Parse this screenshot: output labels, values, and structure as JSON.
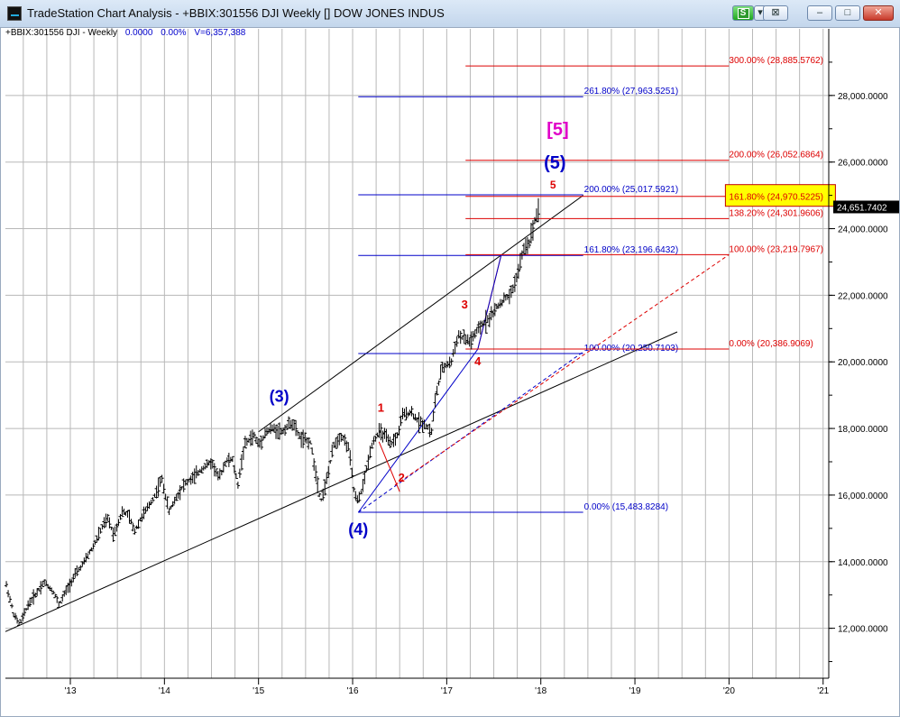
{
  "window": {
    "title": "TradeStation Chart Analysis - +BBIX:301556 DJI Weekly [] DOW JONES INDUS",
    "s_label": "S",
    "link_label": "⊠",
    "min_label": "–",
    "max_label": "□",
    "close_label": "✕"
  },
  "header": {
    "symbol": "+BBIX:301556 DJI - Weekly",
    "value": "0.0000",
    "pct": "0.00%",
    "volume": "V=6,357,388"
  },
  "chart_data": {
    "type": "bar",
    "title": "+BBIX:301556 DJI - Weekly",
    "xlabel": "",
    "ylabel": "",
    "x_ticks": [
      "'13",
      "'14",
      "'15",
      "'16",
      "'17",
      "'18",
      "'19",
      "'20",
      "'21"
    ],
    "x_tick_years": [
      2013,
      2014,
      2015,
      2016,
      2017,
      2018,
      2019,
      2020,
      2021
    ],
    "xlim": [
      2012.31,
      2021.06
    ],
    "ylim": [
      10500,
      30000
    ],
    "y_ticks": [
      12000,
      14000,
      16000,
      18000,
      20000,
      22000,
      24000,
      26000,
      28000
    ],
    "y_tick_labels": [
      "12,000.0000",
      "14,000.0000",
      "16,000.0000",
      "18,000.0000",
      "20,000.0000",
      "22,000.0000",
      "24,000.0000",
      "26,000.0000",
      "28,000.0000"
    ],
    "grid": true,
    "last_price": 24651.7402,
    "last_price_label": "24,651.7402",
    "colors": {
      "blue": "#0000c8",
      "red": "#dd0000",
      "magenta": "#e000c8",
      "bars": "#000000",
      "highlight": "#ffff00"
    },
    "price_path": [
      [
        2012.32,
        13300
      ],
      [
        2012.4,
        12400
      ],
      [
        2012.46,
        12100
      ],
      [
        2012.55,
        12700
      ],
      [
        2012.65,
        13100
      ],
      [
        2012.72,
        13400
      ],
      [
        2012.82,
        13100
      ],
      [
        2012.88,
        12700
      ],
      [
        2012.95,
        13100
      ],
      [
        2013.05,
        13600
      ],
      [
        2013.15,
        14000
      ],
      [
        2013.25,
        14500
      ],
      [
        2013.35,
        15100
      ],
      [
        2013.4,
        15300
      ],
      [
        2013.46,
        14800
      ],
      [
        2013.55,
        15500
      ],
      [
        2013.62,
        15400
      ],
      [
        2013.68,
        14900
      ],
      [
        2013.75,
        15300
      ],
      [
        2013.82,
        15600
      ],
      [
        2013.9,
        16000
      ],
      [
        2013.97,
        16500
      ],
      [
        2014.05,
        15500
      ],
      [
        2014.1,
        15800
      ],
      [
        2014.2,
        16300
      ],
      [
        2014.3,
        16500
      ],
      [
        2014.4,
        16800
      ],
      [
        2014.5,
        17000
      ],
      [
        2014.58,
        16500
      ],
      [
        2014.65,
        17000
      ],
      [
        2014.72,
        17100
      ],
      [
        2014.78,
        16300
      ],
      [
        2014.85,
        17500
      ],
      [
        2014.95,
        17800
      ],
      [
        2015.0,
        17500
      ],
      [
        2015.08,
        17900
      ],
      [
        2015.15,
        18000
      ],
      [
        2015.25,
        17900
      ],
      [
        2015.35,
        18200
      ],
      [
        2015.45,
        17700
      ],
      [
        2015.55,
        17600
      ],
      [
        2015.62,
        16500
      ],
      [
        2015.66,
        15800
      ],
      [
        2015.72,
        16400
      ],
      [
        2015.8,
        17500
      ],
      [
        2015.88,
        17800
      ],
      [
        2015.96,
        17400
      ],
      [
        2016.02,
        16000
      ],
      [
        2016.06,
        15800
      ],
      [
        2016.12,
        16400
      ],
      [
        2016.2,
        17500
      ],
      [
        2016.28,
        17900
      ],
      [
        2016.34,
        17800
      ],
      [
        2016.4,
        17500
      ],
      [
        2016.48,
        17800
      ],
      [
        2016.53,
        18400
      ],
      [
        2016.62,
        18500
      ],
      [
        2016.7,
        18200
      ],
      [
        2016.78,
        18100
      ],
      [
        2016.84,
        17900
      ],
      [
        2016.88,
        18900
      ],
      [
        2016.95,
        19800
      ],
      [
        2017.05,
        20000
      ],
      [
        2017.12,
        20800
      ],
      [
        2017.18,
        20700
      ],
      [
        2017.25,
        20600
      ],
      [
        2017.32,
        20900
      ],
      [
        2017.4,
        21200
      ],
      [
        2017.48,
        21400
      ],
      [
        2017.55,
        21700
      ],
      [
        2017.62,
        21900
      ],
      [
        2017.68,
        22000
      ],
      [
        2017.75,
        22600
      ],
      [
        2017.82,
        23400
      ],
      [
        2017.88,
        23600
      ],
      [
        2017.93,
        24200
      ],
      [
        2017.98,
        24652
      ]
    ],
    "fib_blue": [
      {
        "label": "261.80% (27,963.5251)",
        "value": 27963.5251
      },
      {
        "label": "200.00% (25,017.5921)",
        "value": 25017.5921
      },
      {
        "label": "161.80% (23,196.6432)",
        "value": 23196.6432
      },
      {
        "label": "100.00% (20,250.7103)",
        "value": 20250.7103
      },
      {
        "label": "0.00% (15,483.8284)",
        "value": 15483.8284
      }
    ],
    "fib_red": [
      {
        "label": "300.00% (28,885.5762)",
        "value": 28885.5762
      },
      {
        "label": "200.00% (26,052.6864)",
        "value": 26052.6864
      },
      {
        "label": "161.80% (24,970.5225)",
        "value": 24970.5225
      },
      {
        "label": "138.20% (24,301.9606)",
        "value": 24301.9606
      },
      {
        "label": "100.00% (23,219.7967)",
        "value": 23219.7967
      },
      {
        "label": "0.00% (20,386.9069)",
        "value": 20386.9069
      }
    ],
    "annotations": [
      {
        "text": "(3)",
        "x": 2015.22,
        "y": 18800,
        "color": "#0000c8",
        "size": 18
      },
      {
        "text": "(4)",
        "x": 2016.06,
        "y": 14800,
        "color": "#0000c8",
        "size": 18
      },
      {
        "text": "(5)",
        "x": 2018.15,
        "y": 25800,
        "color": "#0000c8",
        "size": 20
      },
      {
        "text": "[5]",
        "x": 2018.18,
        "y": 26800,
        "color": "#e000c8",
        "size": 20
      },
      {
        "text": "1",
        "x": 2016.3,
        "y": 18500,
        "color": "#dd0000",
        "size": 13
      },
      {
        "text": "2",
        "x": 2016.52,
        "y": 16400,
        "color": "#dd0000",
        "size": 13
      },
      {
        "text": "3",
        "x": 2017.19,
        "y": 21600,
        "color": "#dd0000",
        "size": 13
      },
      {
        "text": "4",
        "x": 2017.33,
        "y": 19900,
        "color": "#dd0000",
        "size": 13
      },
      {
        "text": "5",
        "x": 2018.13,
        "y": 25200,
        "color": "#dd0000",
        "size": 12
      }
    ]
  }
}
